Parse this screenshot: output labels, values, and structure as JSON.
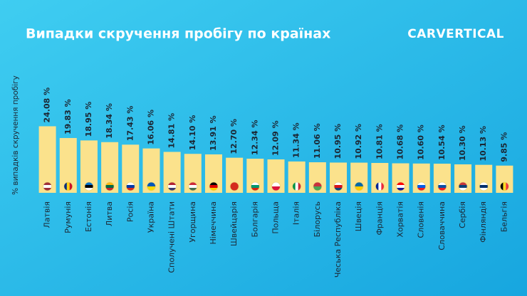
{
  "chart_data": {
    "type": "bar",
    "title": "Випадки скручення пробігу по країнах",
    "logo": "CARVERTICAL",
    "y_axis_label": "% випадків скручення пробігу",
    "categories": [
      "Латвія",
      "Румунія",
      "Естонія",
      "Литва",
      "Росія",
      "Україна",
      "Сполучені Штати",
      "Угорщина",
      "Німеччина",
      "Швейцарія",
      "Болгарія",
      "Польща",
      "Італія",
      "Білорусь",
      "Чеська Республіка",
      "Швеція",
      "Франція",
      "Хорватія",
      "Словенія",
      "Словаччина",
      "Сербія",
      "Фінляндія",
      "Бельгія"
    ],
    "values": [
      24.08,
      19.83,
      18.95,
      18.34,
      17.43,
      16.06,
      14.81,
      14.1,
      13.91,
      12.7,
      12.34,
      12.09,
      11.34,
      11.06,
      10.95,
      10.92,
      10.81,
      10.68,
      10.6,
      10.54,
      10.3,
      10.13,
      9.85
    ],
    "value_labels": [
      "24.08 %",
      "19.83 %",
      "18.95 %",
      "18.34 %",
      "17.43 %",
      "16.06 %",
      "14.81 %",
      "14.10 %",
      "13.91 %",
      "12.70 %",
      "12.34 %",
      "12.09 %",
      "11.34 %",
      "11.06 %",
      "10.95 %",
      "10.92 %",
      "10.81 %",
      "10.68 %",
      "10.60 %",
      "10.54 %",
      "10.30 %",
      "10.13 %",
      "9.85 %"
    ],
    "color": "#fbe28c",
    "ylim": [
      0,
      26
    ]
  }
}
